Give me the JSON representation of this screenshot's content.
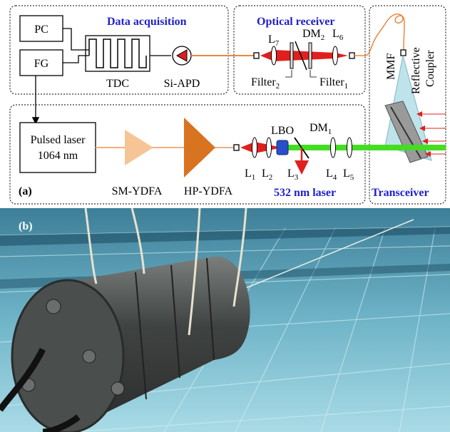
{
  "panel_a": {
    "label": "(a)",
    "sections": {
      "data_acquisition": "Data acquisition",
      "optical_receiver": "Optical receiver",
      "laser": "532 nm laser",
      "transceiver": "Transceiver"
    },
    "devices": {
      "pc": "PC",
      "fg": "FG",
      "tdc": "TDC",
      "apd": "Si-APD",
      "pulsed_laser_line1": "Pulsed laser",
      "pulsed_laser_line2": "1064 nm",
      "sm_ydfa": "SM-YDFA",
      "hp_ydfa": "HP-YDFA",
      "lbo": "LBO",
      "mmf": "MMF",
      "coupler_line1": "Reflective",
      "coupler_line2": "Coupler"
    },
    "optics": {
      "l1": {
        "base": "L",
        "sub": "1"
      },
      "l2": {
        "base": "L",
        "sub": "2"
      },
      "l3": {
        "base": "L",
        "sub": "3"
      },
      "l4": {
        "base": "L",
        "sub": "4"
      },
      "l5": {
        "base": "L",
        "sub": "5"
      },
      "l6": {
        "base": "L",
        "sub": "6"
      },
      "l7": {
        "base": "L",
        "sub": "7"
      },
      "dm1": {
        "base": "DM",
        "sub": "1"
      },
      "dm2": {
        "base": "DM",
        "sub": "2"
      },
      "filter1": {
        "base": "Filter",
        "sub": "1"
      },
      "filter2": {
        "base": "Filter",
        "sub": "2"
      }
    }
  },
  "panel_b": {
    "label": "(b)"
  }
}
